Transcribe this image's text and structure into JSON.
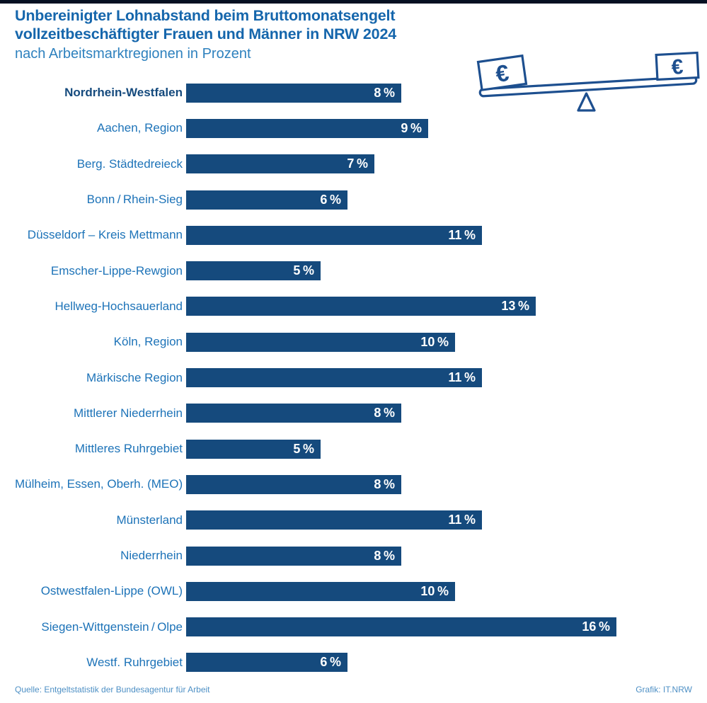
{
  "header": {
    "title_line1": "Unbereinigter Lohnabstand beim Bruttomonatsengelt",
    "title_line2": "vollzeitbeschäftigter Frauen und Männer in NRW 2024",
    "subtitle": "nach Arbeitsmarktregionen in Prozent"
  },
  "icon": {
    "name": "euro-balance-scale",
    "euro_left": "€",
    "euro_right": "€"
  },
  "footer": {
    "source": "Quelle: Entgeltstatistik der Bundesagentur für Arbeit",
    "credit": "Grafik: IT.NRW"
  },
  "colors": {
    "background": "#FFFFFF",
    "top_strip": "#061022",
    "title": "#1566AC",
    "subtitle": "#2E81BE",
    "category_label": "#1D73B8",
    "category_label_emphasis": "#154A7D",
    "bar": "#154A7D",
    "bar_value_text": "#FFFFFF",
    "footer_text": "#4E90C5",
    "icon_outline": "#1D4F8F"
  },
  "chart_data": {
    "type": "bar",
    "orientation": "horizontal",
    "title": "Unbereinigter Lohnabstand beim Bruttomonatsengelt vollzeitbeschäftigter Frauen und Männer in NRW 2024",
    "subtitle": "nach Arbeitsmarktregionen in Prozent",
    "unit": "percent",
    "xlim": [
      0,
      16
    ],
    "grid": false,
    "legend": false,
    "value_axis_visible": false,
    "categories": [
      "Nordrhein-Westfalen",
      "Aachen, Region",
      "Berg. Städtedreieck",
      "Bonn / Rhein-Sieg",
      "Düsseldorf – Kreis Mettmann",
      "Emscher-Lippe-Rewgion",
      "Hellweg-Hochsauerland",
      "Köln, Region",
      "Märkische Region",
      "Mittlerer Niederrhein",
      "Mittleres Ruhrgebiet",
      "Mülheim, Essen, Oberh. (MEO)",
      "Münsterland",
      "Niederrhein",
      "Ostwestfalen-Lippe (OWL)",
      "Siegen-Wittgenstein / Olpe",
      "Westf. Ruhrgebiet"
    ],
    "values": [
      8,
      9,
      7,
      6,
      11,
      5,
      13,
      10,
      11,
      8,
      5,
      8,
      11,
      8,
      10,
      16,
      6
    ],
    "rows": [
      {
        "label": "Nordrhein-Westfalen",
        "value": 8,
        "value_label": "8 %",
        "emphasis": true
      },
      {
        "label": "Aachen, Region",
        "value": 9,
        "value_label": "9 %",
        "emphasis": false
      },
      {
        "label": "Berg. Städtedreieck",
        "value": 7,
        "value_label": "7 %",
        "emphasis": false
      },
      {
        "label": "Bonn / Rhein-Sieg",
        "value": 6,
        "value_label": "6 %",
        "emphasis": false
      },
      {
        "label": "Düsseldorf – Kreis Mettmann",
        "value": 11,
        "value_label": "11 %",
        "emphasis": false
      },
      {
        "label": "Emscher-Lippe-Rewgion",
        "value": 5,
        "value_label": "5 %",
        "emphasis": false
      },
      {
        "label": "Hellweg-Hochsauerland",
        "value": 13,
        "value_label": "13 %",
        "emphasis": false
      },
      {
        "label": "Köln, Region",
        "value": 10,
        "value_label": "10 %",
        "emphasis": false
      },
      {
        "label": "Märkische Region",
        "value": 11,
        "value_label": "11 %",
        "emphasis": false
      },
      {
        "label": "Mittlerer Niederrhein",
        "value": 8,
        "value_label": "8 %",
        "emphasis": false
      },
      {
        "label": "Mittleres Ruhrgebiet",
        "value": 5,
        "value_label": "5 %",
        "emphasis": false
      },
      {
        "label": "Mülheim, Essen, Oberh. (MEO)",
        "value": 8,
        "value_label": "8 %",
        "emphasis": false
      },
      {
        "label": "Münsterland",
        "value": 11,
        "value_label": "11 %",
        "emphasis": false
      },
      {
        "label": "Niederrhein",
        "value": 8,
        "value_label": "8 %",
        "emphasis": false
      },
      {
        "label": "Ostwestfalen-Lippe (OWL)",
        "value": 10,
        "value_label": "10 %",
        "emphasis": false
      },
      {
        "label": "Siegen-Wittgenstein / Olpe",
        "value": 16,
        "value_label": "16 %",
        "emphasis": false
      },
      {
        "label": "Westf. Ruhrgebiet",
        "value": 6,
        "value_label": "6 %",
        "emphasis": false
      }
    ]
  }
}
